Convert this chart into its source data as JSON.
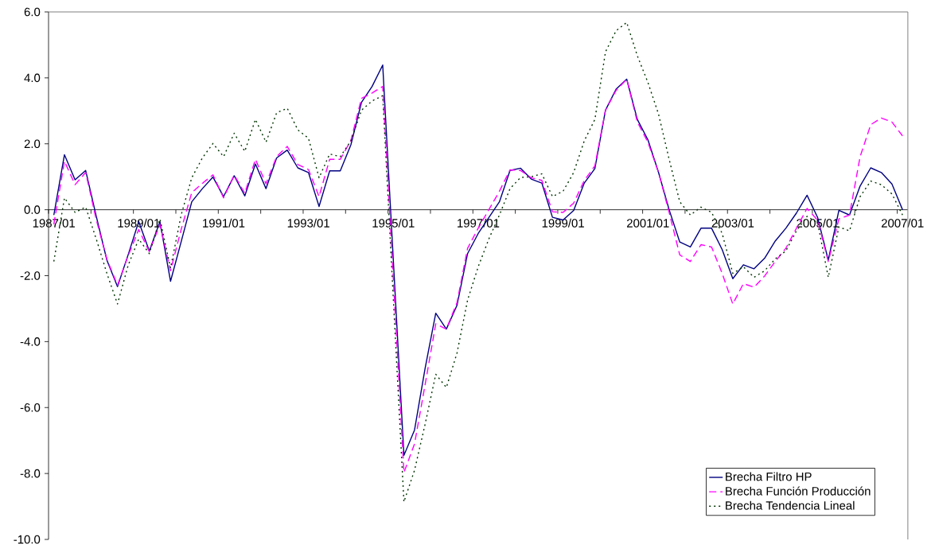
{
  "chart_data": {
    "type": "line",
    "categories": [
      "1987/01",
      null,
      null,
      null,
      null,
      null,
      null,
      null,
      "1989/01",
      null,
      null,
      null,
      null,
      null,
      null,
      null,
      "1991/01",
      null,
      null,
      null,
      null,
      null,
      null,
      null,
      "1993/01",
      null,
      null,
      null,
      null,
      null,
      null,
      null,
      "1995/01",
      null,
      null,
      null,
      null,
      null,
      null,
      null,
      "1997/01",
      null,
      null,
      null,
      null,
      null,
      null,
      null,
      "1999/01",
      null,
      null,
      null,
      null,
      null,
      null,
      null,
      "2001/01",
      null,
      null,
      null,
      null,
      null,
      null,
      null,
      "2003/01",
      null,
      null,
      null,
      null,
      null,
      null,
      null,
      "2005/01",
      null,
      null,
      null,
      null,
      null,
      null,
      null,
      "2007/01"
    ],
    "series": [
      {
        "name": "Brecha Filtro HP",
        "color": "#000080",
        "line_style": "solid",
        "values": [
          -0.16,
          1.67,
          0.91,
          1.19,
          -0.2,
          -1.53,
          -2.33,
          -1.37,
          -0.36,
          -1.25,
          -0.36,
          -2.17,
          -0.97,
          0.24,
          0.64,
          0.99,
          0.4,
          1.03,
          0.42,
          1.39,
          0.64,
          1.57,
          1.81,
          1.27,
          1.13,
          0.1,
          1.18,
          1.18,
          1.97,
          3.26,
          3.74,
          4.39,
          -1.53,
          -7.45,
          -6.68,
          -4.8,
          -3.14,
          -3.62,
          -2.9,
          -1.33,
          -0.72,
          -0.24,
          0.24,
          1.19,
          1.26,
          0.93,
          0.81,
          -0.23,
          -0.31,
          -0.02,
          0.81,
          1.25,
          3.02,
          3.66,
          3.96,
          2.74,
          2.12,
          1.13,
          0.0,
          -0.98,
          -1.13,
          -0.56,
          -0.56,
          -1.21,
          -2.09,
          -1.67,
          -1.79,
          -1.47,
          -0.95,
          -0.56,
          -0.1,
          0.44,
          -0.24,
          -1.53,
          -0.02,
          -0.16,
          0.72,
          1.27,
          1.13,
          0.78,
          0.0
        ]
      },
      {
        "name": "Brecha Función Producción",
        "color": "#ff00ff",
        "line_style": "dashed",
        "values": [
          -0.44,
          1.47,
          0.76,
          1.13,
          -0.3,
          -1.5,
          -2.29,
          -1.4,
          -0.6,
          -1.27,
          -0.44,
          -1.85,
          -0.6,
          0.52,
          0.8,
          1.06,
          0.36,
          1.05,
          0.5,
          1.53,
          0.79,
          1.61,
          1.92,
          1.37,
          1.22,
          0.4,
          1.53,
          1.53,
          2.1,
          3.38,
          3.54,
          3.74,
          -2.1,
          -7.97,
          -7.1,
          -5.3,
          -3.46,
          -3.62,
          -2.82,
          -1.17,
          -0.56,
          0.0,
          0.56,
          1.21,
          1.19,
          0.97,
          0.89,
          -0.06,
          -0.08,
          0.2,
          0.89,
          1.33,
          3.02,
          3.62,
          3.96,
          2.66,
          2.05,
          1.13,
          -0.08,
          -1.37,
          -1.57,
          -1.06,
          -1.13,
          -1.93,
          -2.86,
          -2.24,
          -2.35,
          -2.01,
          -1.57,
          -1.17,
          -0.56,
          0.04,
          -0.32,
          -1.57,
          -0.28,
          -0.16,
          1.61,
          2.58,
          2.78,
          2.66,
          2.24
        ]
      },
      {
        "name": "Brecha Tendencia Lineal",
        "color": "#003300",
        "line_style": "dotted",
        "values": [
          -1.57,
          0.36,
          -0.08,
          0.08,
          -0.89,
          -1.93,
          -2.86,
          -1.69,
          -0.89,
          -1.33,
          -0.28,
          -1.77,
          -0.16,
          0.97,
          1.57,
          2.01,
          1.61,
          2.32,
          1.77,
          2.74,
          2.05,
          2.94,
          3.08,
          2.42,
          2.17,
          0.97,
          1.69,
          1.61,
          2.09,
          3.02,
          3.3,
          3.46,
          -2.7,
          -8.86,
          -7.9,
          -6.5,
          -4.99,
          -5.39,
          -4.35,
          -2.74,
          -1.73,
          -0.89,
          -0.16,
          0.64,
          0.98,
          1.0,
          1.09,
          0.4,
          0.56,
          1.13,
          2.09,
          2.74,
          4.79,
          5.43,
          5.68,
          4.67,
          3.86,
          2.9,
          1.53,
          0.24,
          -0.16,
          0.08,
          -0.08,
          -0.72,
          -1.93,
          -1.73,
          -2.05,
          -1.85,
          -1.49,
          -1.25,
          -0.64,
          -0.2,
          -0.4,
          -2.05,
          -0.52,
          -0.64,
          0.4,
          0.87,
          0.76,
          0.48,
          -0.16
        ]
      }
    ],
    "ylim": [
      -10,
      6
    ],
    "yticks": [
      {
        "value": -10,
        "label": "-10.0"
      },
      {
        "value": -8,
        "label": "-8.0"
      },
      {
        "value": -6,
        "label": "-6.0"
      },
      {
        "value": -4,
        "label": "-4.0"
      },
      {
        "value": -2,
        "label": "-2.0"
      },
      {
        "value": 0,
        "label": "0.0"
      },
      {
        "value": 2,
        "label": "2.0"
      },
      {
        "value": 4,
        "label": "4.0"
      },
      {
        "value": 6,
        "label": "6.0"
      }
    ],
    "grid": false,
    "legend": "bottom right",
    "marker": "none"
  }
}
